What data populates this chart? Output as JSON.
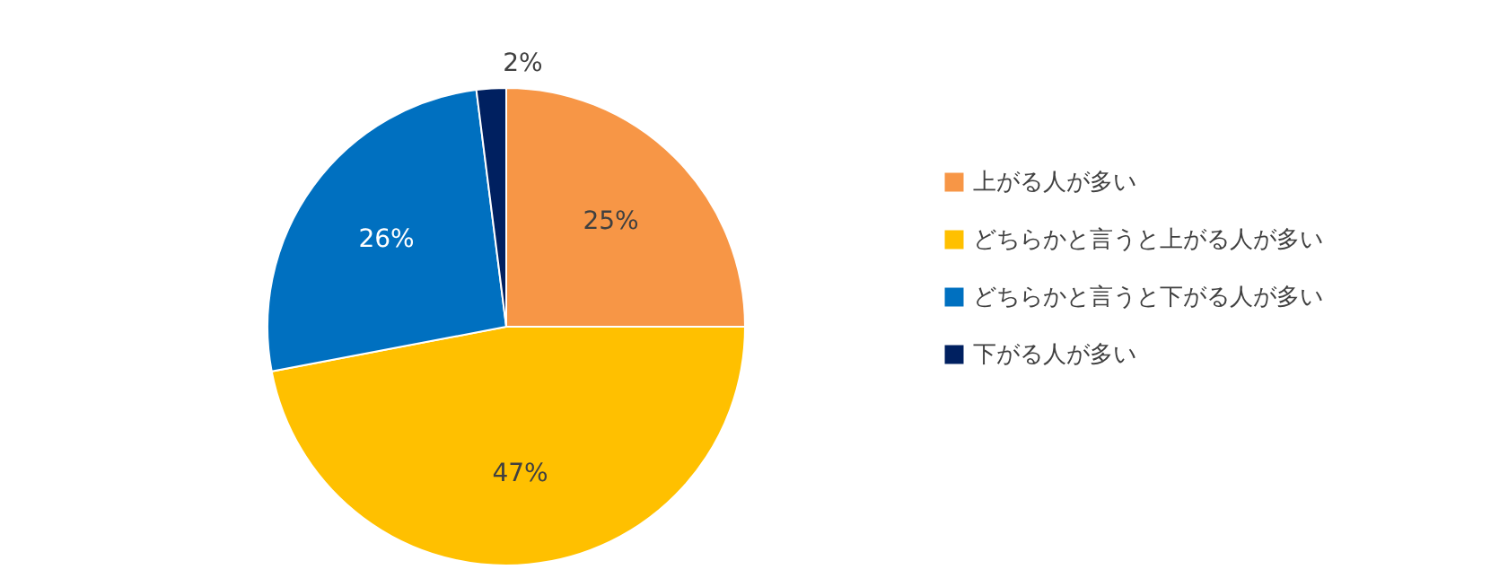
{
  "chart_data": {
    "type": "pie",
    "categories": [
      "上がる人が多い",
      "どちらかと言うと上がる人が多い",
      "どちらかと言うと下がる人が多い",
      "下がる人が多い"
    ],
    "values": [
      25,
      47,
      26,
      2
    ],
    "colors": [
      "#f79646",
      "#ffc000",
      "#0070c0",
      "#002060"
    ],
    "value_labels": [
      "25%",
      "47%",
      "26%",
      "2%"
    ],
    "legend": "right"
  }
}
